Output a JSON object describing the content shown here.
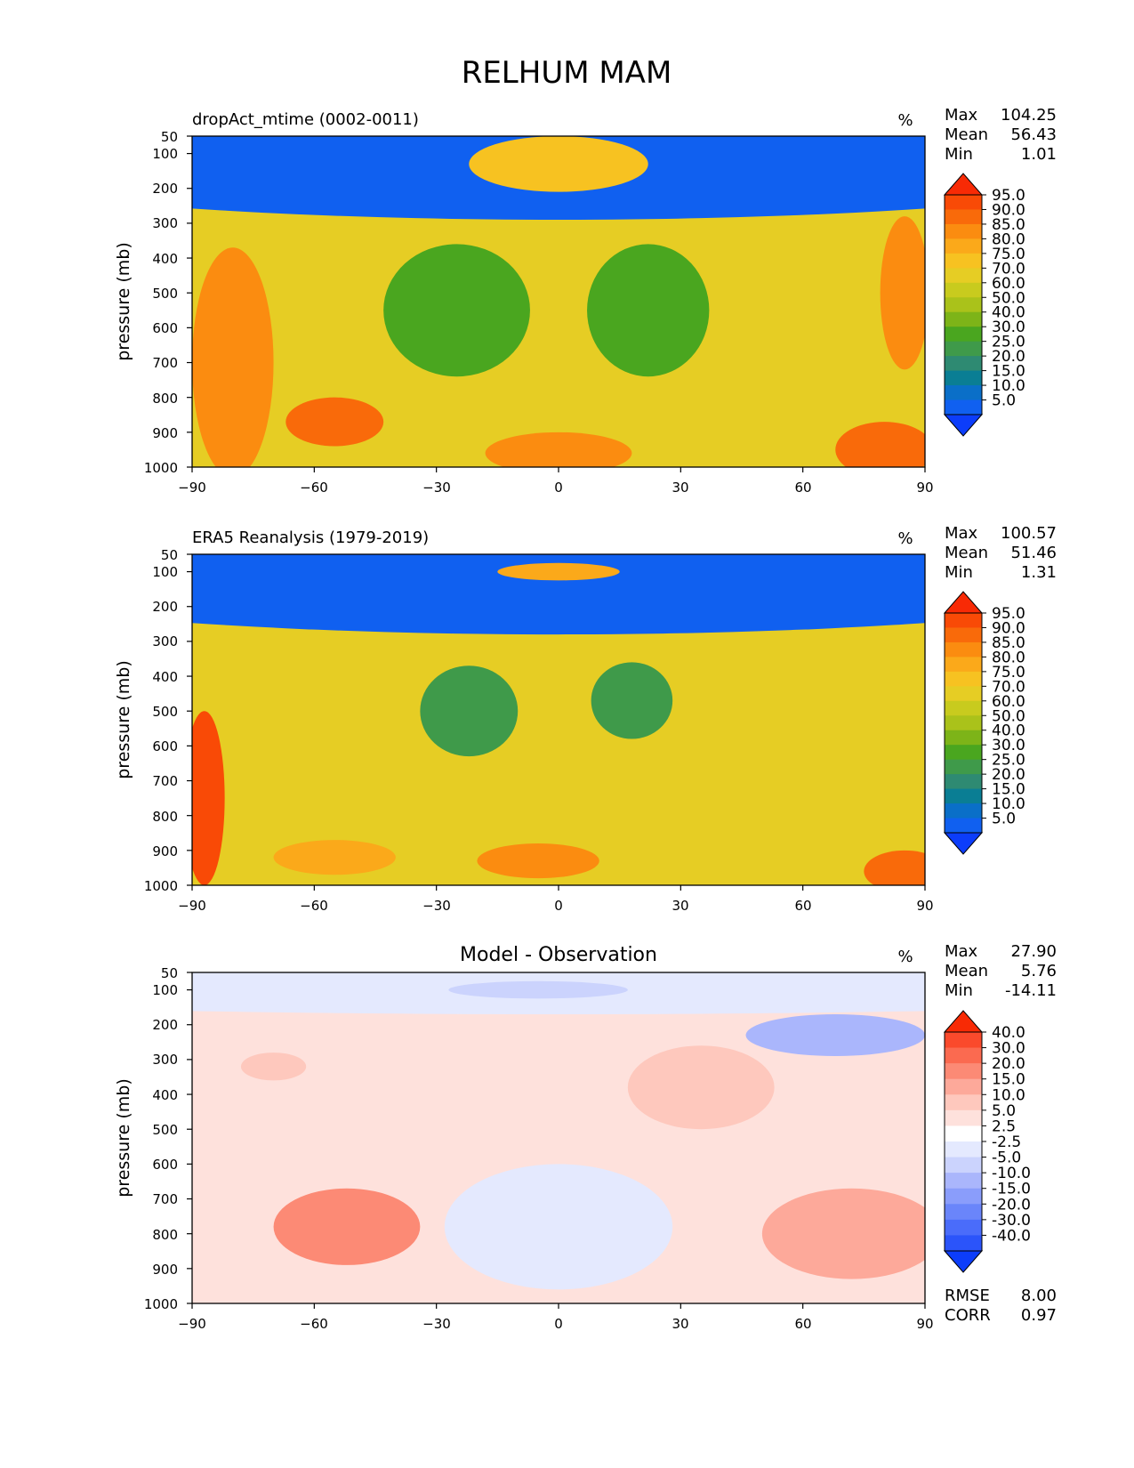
{
  "figure_title": "RELHUM MAM",
  "colors": {
    "main": [
      "#0c3dfa",
      "#1060f0",
      "#0a6fc8",
      "#0a7e94",
      "#2e8a72",
      "#3f9a4a",
      "#4aa61f",
      "#7db418",
      "#aac21a",
      "#c8cb1e",
      "#e6cd24",
      "#f7c221",
      "#fba91a",
      "#fb8c10",
      "#f96a0a",
      "#f94a06",
      "#f82a05"
    ],
    "diff": [
      "#0c3dfa",
      "#2b54fa",
      "#4a6cfa",
      "#6a85fa",
      "#8a9dfb",
      "#aab6fc",
      "#cbd3fd",
      "#e4e9fe",
      "#ffffff",
      "#fee1dc",
      "#fec8bd",
      "#fda99a",
      "#fc8a75",
      "#fb6a50",
      "#fa4a2c",
      "#f82a05"
    ]
  },
  "chart_data": [
    {
      "type": "heatmap",
      "title": "dropAct_mtime (0002-0011)",
      "units": "%",
      "stats": [
        {
          "label": "Max",
          "value": "104.25"
        },
        {
          "label": "Mean",
          "value": "56.43"
        },
        {
          "label": "Min",
          "value": "1.01"
        }
      ],
      "ylabel": "pressure (mb)",
      "xlim": [
        -90,
        90
      ],
      "ylim": [
        1000,
        50
      ],
      "xticks": [
        "−90",
        "−60",
        "−30",
        "0",
        "30",
        "60",
        "90"
      ],
      "yticks": [
        "50",
        "100",
        "200",
        "300",
        "400",
        "500",
        "600",
        "700",
        "800",
        "900",
        "1000"
      ],
      "colorbar_palette": "main",
      "colorbar_levels": [
        "95.0",
        "90.0",
        "85.0",
        "80.0",
        "75.0",
        "70.0",
        "60.0",
        "50.0",
        "40.0",
        "30.0",
        "25.0",
        "20.0",
        "15.0",
        "10.0",
        "5.0"
      ],
      "field": {
        "background_level": 70,
        "features": [
          {
            "lat": 0,
            "p": 50,
            "rx": 180,
            "rp": 240,
            "level": 5
          },
          {
            "lat": 0,
            "p": 130,
            "rx": 22,
            "rp": 80,
            "level": 75
          },
          {
            "lat": -25,
            "p": 550,
            "rx": 18,
            "rp": 190,
            "level": 30
          },
          {
            "lat": 22,
            "p": 550,
            "rx": 15,
            "rp": 190,
            "level": 30
          },
          {
            "lat": -80,
            "p": 700,
            "rx": 10,
            "rp": 330,
            "level": 85
          },
          {
            "lat": -55,
            "p": 870,
            "rx": 12,
            "rp": 70,
            "level": 90
          },
          {
            "lat": 85,
            "p": 500,
            "rx": 6,
            "rp": 220,
            "level": 85
          },
          {
            "lat": 80,
            "p": 950,
            "rx": 12,
            "rp": 80,
            "level": 90
          },
          {
            "lat": 0,
            "p": 960,
            "rx": 18,
            "rp": 60,
            "level": 85
          }
        ]
      }
    },
    {
      "type": "heatmap",
      "title": "ERA5 Reanalysis (1979-2019)",
      "units": "%",
      "stats": [
        {
          "label": "Max",
          "value": "100.57"
        },
        {
          "label": "Mean",
          "value": "51.46"
        },
        {
          "label": "Min",
          "value": "1.31"
        }
      ],
      "ylabel": "pressure (mb)",
      "xlim": [
        -90,
        90
      ],
      "ylim": [
        1000,
        50
      ],
      "xticks": [
        "−90",
        "−60",
        "−30",
        "0",
        "30",
        "60",
        "90"
      ],
      "yticks": [
        "50",
        "100",
        "200",
        "300",
        "400",
        "500",
        "600",
        "700",
        "800",
        "900",
        "1000"
      ],
      "colorbar_palette": "main",
      "colorbar_levels": [
        "95.0",
        "90.0",
        "85.0",
        "80.0",
        "75.0",
        "70.0",
        "60.0",
        "50.0",
        "40.0",
        "30.0",
        "25.0",
        "20.0",
        "15.0",
        "10.0",
        "5.0"
      ],
      "field": {
        "background_level": 70,
        "features": [
          {
            "lat": 0,
            "p": 50,
            "rx": 175,
            "rp": 230,
            "level": 5
          },
          {
            "lat": 0,
            "p": 100,
            "rx": 15,
            "rp": 25,
            "level": 80
          },
          {
            "lat": -22,
            "p": 500,
            "rx": 12,
            "rp": 130,
            "level": 25
          },
          {
            "lat": 18,
            "p": 470,
            "rx": 10,
            "rp": 110,
            "level": 25
          },
          {
            "lat": -87,
            "p": 750,
            "rx": 5,
            "rp": 250,
            "level": 95
          },
          {
            "lat": -55,
            "p": 920,
            "rx": 15,
            "rp": 50,
            "level": 80
          },
          {
            "lat": -5,
            "p": 930,
            "rx": 15,
            "rp": 50,
            "level": 85
          },
          {
            "lat": 85,
            "p": 960,
            "rx": 10,
            "rp": 60,
            "level": 90
          }
        ]
      }
    },
    {
      "type": "heatmap",
      "title": "Model - Observation",
      "units": "%",
      "stats": [
        {
          "label": "Max",
          "value": "27.90"
        },
        {
          "label": "Mean",
          "value": "5.76"
        },
        {
          "label": "Min",
          "value": "-14.11"
        }
      ],
      "ylabel": "pressure (mb)",
      "xlim": [
        -90,
        90
      ],
      "ylim": [
        1000,
        50
      ],
      "xticks": [
        "−90",
        "−60",
        "−30",
        "0",
        "30",
        "60",
        "90"
      ],
      "yticks": [
        "50",
        "100",
        "200",
        "300",
        "400",
        "500",
        "600",
        "700",
        "800",
        "900",
        "1000"
      ],
      "colorbar_palette": "diff",
      "colorbar_levels": [
        "40.0",
        "30.0",
        "20.0",
        "15.0",
        "10.0",
        "5.0",
        "2.5",
        "-2.5",
        "-5.0",
        "-10.0",
        "-15.0",
        "-20.0",
        "-30.0",
        "-40.0"
      ],
      "extra_stats": [
        {
          "label": "RMSE",
          "value": "8.00"
        },
        {
          "label": "CORR",
          "value": "0.97"
        }
      ],
      "field": {
        "background_level": 5,
        "features": [
          {
            "lat": 0,
            "p": 100,
            "rx": 180,
            "rp": 70,
            "level": 0
          },
          {
            "lat": -5,
            "p": 100,
            "rx": 22,
            "rp": 25,
            "level": -5
          },
          {
            "lat": 68,
            "p": 230,
            "rx": 22,
            "rp": 60,
            "level": -10
          },
          {
            "lat": 0,
            "p": 780,
            "rx": 28,
            "rp": 180,
            "level": 0
          },
          {
            "lat": -52,
            "p": 780,
            "rx": 18,
            "rp": 110,
            "level": 20
          },
          {
            "lat": 72,
            "p": 800,
            "rx": 22,
            "rp": 130,
            "level": 15
          },
          {
            "lat": 35,
            "p": 380,
            "rx": 18,
            "rp": 120,
            "level": 10
          },
          {
            "lat": -70,
            "p": 320,
            "rx": 8,
            "rp": 40,
            "level": 10
          }
        ]
      }
    }
  ]
}
